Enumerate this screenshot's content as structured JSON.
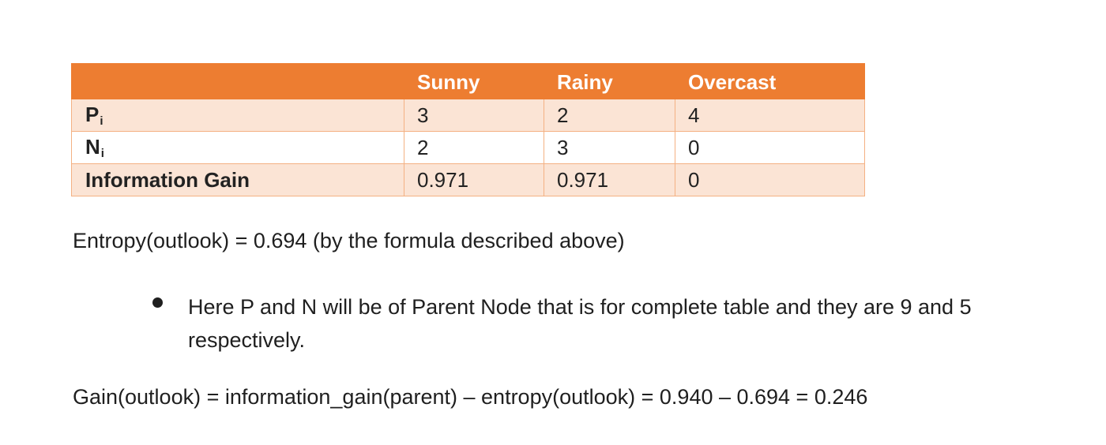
{
  "table": {
    "headers": [
      "",
      "Sunny",
      "Rainy",
      "Overcast"
    ],
    "rows": [
      {
        "label": "P",
        "subscript": "i",
        "values": [
          "3",
          "2",
          "4"
        ]
      },
      {
        "label": "N",
        "subscript": "i",
        "values": [
          "2",
          "3",
          "0"
        ]
      },
      {
        "label": "Information Gain",
        "subscript": "",
        "values": [
          "0.971",
          "0.971",
          "0"
        ]
      }
    ]
  },
  "paragraphs": {
    "entropy": "Entropy(outlook) = 0.694 (by the formula described above)",
    "bullet": "Here P and N will be of Parent Node that is for complete table and they are 9 and 5 respectively.",
    "gain": "Gain(outlook) = information_gain(parent) – entropy(outlook) = 0.940 – 0.694 = 0.246"
  },
  "colors": {
    "header_bg": "#ed7d31",
    "band_bg": "#fbe4d5",
    "border": "#f4b183"
  }
}
